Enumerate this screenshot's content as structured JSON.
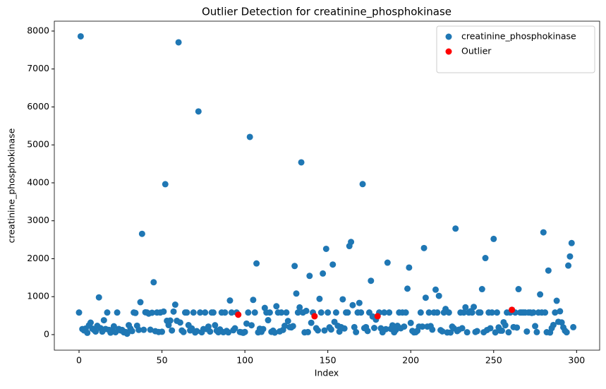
{
  "chart_data": {
    "type": "scatter",
    "title": "Outlier Detection for creatinine_phosphokinase",
    "xlabel": "Index",
    "ylabel": "creatinine_phosphokinase",
    "xlim": [
      -14.9,
      313.9
    ],
    "ylim": [
      -410,
      8260
    ],
    "xticks": [
      0,
      50,
      100,
      150,
      200,
      250,
      300
    ],
    "yticks": [
      0,
      1000,
      2000,
      3000,
      4000,
      5000,
      6000,
      7000,
      8000
    ],
    "legend": "upper right",
    "series": [
      {
        "name": "creatinine_phosphokinase",
        "color": "#1f77b4",
        "x": [
          0,
          1,
          2,
          3,
          4,
          5,
          6,
          7,
          8,
          9,
          10,
          11,
          12,
          13,
          14,
          15,
          16,
          17,
          18,
          19,
          20,
          21,
          22,
          23,
          24,
          25,
          26,
          27,
          28,
          29,
          30,
          31,
          32,
          33,
          34,
          35,
          36,
          37,
          38,
          39,
          40,
          41,
          42,
          43,
          44,
          45,
          46,
          47,
          48,
          49,
          50,
          51,
          52,
          53,
          54,
          55,
          56,
          57,
          58,
          59,
          60,
          61,
          62,
          63,
          64,
          65,
          66,
          67,
          68,
          69,
          70,
          71,
          72,
          73,
          74,
          75,
          76,
          77,
          78,
          79,
          80,
          81,
          82,
          83,
          84,
          85,
          86,
          87,
          88,
          89,
          90,
          91,
          92,
          93,
          94,
          95,
          96,
          97,
          98,
          99,
          100,
          101,
          102,
          103,
          104,
          105,
          106,
          107,
          108,
          109,
          110,
          111,
          112,
          113,
          114,
          115,
          116,
          117,
          118,
          119,
          120,
          121,
          122,
          123,
          124,
          125,
          126,
          127,
          128,
          129,
          130,
          131,
          132,
          133,
          134,
          135,
          136,
          137,
          138,
          139,
          140,
          141,
          142,
          143,
          144,
          145,
          146,
          147,
          148,
          149,
          150,
          151,
          152,
          153,
          154,
          155,
          156,
          157,
          158,
          159,
          160,
          161,
          162,
          163,
          164,
          165,
          166,
          167,
          168,
          169,
          170,
          171,
          172,
          173,
          174,
          175,
          176,
          177,
          178,
          179,
          180,
          181,
          182,
          183,
          184,
          185,
          186,
          187,
          188,
          189,
          190,
          191,
          192,
          193,
          194,
          195,
          196,
          197,
          198,
          199,
          200,
          201,
          202,
          203,
          204,
          205,
          206,
          207,
          208,
          209,
          210,
          211,
          212,
          213,
          214,
          215,
          216,
          217,
          218,
          219,
          220,
          221,
          222,
          223,
          224,
          225,
          226,
          227,
          228,
          229,
          230,
          231,
          232,
          233,
          234,
          235,
          236,
          237,
          238,
          239,
          240,
          241,
          242,
          243,
          244,
          245,
          246,
          247,
          248,
          249,
          250,
          251,
          252,
          253,
          254,
          255,
          256,
          257,
          258,
          259,
          260,
          261,
          262,
          263,
          264,
          265,
          266,
          267,
          268,
          269,
          270,
          271,
          272,
          273,
          274,
          275,
          276,
          277,
          278,
          279,
          280,
          281,
          282,
          283,
          284,
          285,
          286,
          287,
          288,
          289,
          290,
          291,
          292,
          293,
          294,
          295,
          296,
          297,
          298
        ],
        "values": [
          582,
          7861,
          146,
          111,
          160,
          47,
          246,
          315,
          157,
          123,
          81,
          231,
          981,
          168,
          80,
          379,
          149,
          582,
          125,
          52,
          128,
          220,
          63,
          582,
          148,
          112,
          122,
          60,
          70,
          23,
          249,
          159,
          94,
          582,
          571,
          235,
          124,
          855,
          2656,
          127,
          588,
          582,
          553,
          129,
          577,
          1380,
          91,
          582,
          69,
          582,
          75,
          607,
          3964,
          364,
          250,
          371,
          109,
          607,
          789,
          364,
          7702,
          318,
          109,
          68,
          582,
          582,
          250,
          110,
          161,
          582,
          57,
          92,
          5882,
          582,
          62,
          145,
          582,
          148,
          212,
          80,
          582,
          582,
          248,
          104,
          63,
          136,
          582,
          64,
          582,
          97,
          59,
          899,
          582,
          115,
          166,
          582,
          526,
          69,
          60,
          47,
          69,
          291,
          582,
          5209,
          246,
          915,
          582,
          1876,
          59,
          156,
          73,
          146,
          703,
          582,
          380,
          582,
          72,
          104,
          53,
          748,
          582,
          85,
          582,
          123,
          231,
          582,
          359,
          198,
          190,
          223,
          1808,
          1082,
          582,
          718,
          4540,
          582,
          59,
          625,
          66,
          1548,
          312,
          582,
          485,
          168,
          111,
          943,
          582,
          1610,
          109,
          2261,
          582,
          192,
          135,
          1846,
          335,
          582,
          233,
          79,
          198,
          930,
          161,
          582,
          582,
          2334,
          2442,
          776,
          196,
          66,
          582,
          835,
          582,
          3966,
          171,
          198,
          95,
          582,
          1419,
          478,
          176,
          395,
          485,
          582,
          166,
          62,
          582,
          144,
          1896,
          582,
          151,
          244,
          62,
          121,
          231,
          582,
          167,
          582,
          212,
          582,
          1211,
          1767,
          308,
          97,
          59,
          64,
          101,
          212,
          582,
          212,
          2281,
          972,
          212,
          582,
          224,
          131,
          582,
          1185,
          582,
          1021,
          118,
          86,
          582,
          675,
          57,
          582,
          56,
          211,
          166,
          2794,
          93,
          129,
          582,
          168,
          582,
          720,
          61,
          582,
          615,
          582,
          730,
          70,
          92,
          582,
          582,
          1199,
          63,
          2017,
          121,
          582,
          167,
          582,
          2522,
          58,
          582,
          190,
          104,
          103,
          326,
          246,
          582,
          62,
          582,
          653,
          198,
          582,
          186,
          1199,
          582,
          582,
          582,
          582,
          81,
          582,
          582,
          572,
          582,
          224,
          66,
          582,
          1059,
          582,
          2695,
          582,
          64,
          1688,
          54,
          170,
          253,
          582,
          892,
          337,
          615,
          320,
          190,
          103,
          61,
          1820,
          2060,
          2413,
          196
        ]
      },
      {
        "name": "Outlier",
        "color": "#ff0000",
        "x": [
          96,
          142,
          180,
          261
        ],
        "values": [
          526,
          485,
          485,
          653
        ]
      }
    ]
  }
}
